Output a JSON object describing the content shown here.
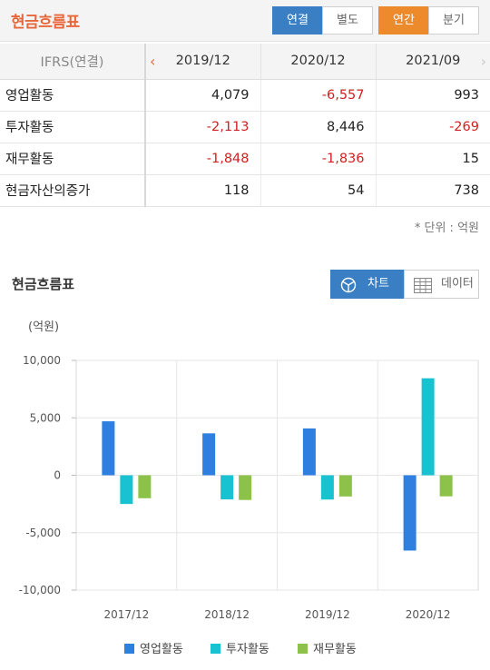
{
  "header": {
    "title": "현금흐름표",
    "scope_tabs": [
      "연결",
      "별도"
    ],
    "scope_selected": "연결",
    "period_tabs": [
      "연간",
      "분기"
    ],
    "period_selected": "연간"
  },
  "table": {
    "basis_label": "IFRS(연결)",
    "columns": [
      "2019/12",
      "2020/12",
      "2021/09"
    ],
    "rows": [
      {
        "label": "영업활동",
        "values": [
          "4,079",
          "-6,557",
          "993"
        ]
      },
      {
        "label": "투자활동",
        "values": [
          "-2,113",
          "8,446",
          "-269"
        ]
      },
      {
        "label": "재무활동",
        "values": [
          "-1,848",
          "-1,836",
          "15"
        ]
      },
      {
        "label": "현금자산의증가",
        "values": [
          "118",
          "54",
          "738"
        ]
      }
    ],
    "unit_note": "* 단위 : 억원"
  },
  "chart_section": {
    "title": "현금흐름표",
    "view_tabs": [
      "차트",
      "데이터"
    ],
    "view_selected": "차트"
  },
  "colors": {
    "operating": "#2e7fe0",
    "investing": "#18c2d0",
    "financing": "#8cc24a",
    "negative": "#d21f1f",
    "accent": "#e8673a"
  },
  "chart_data": {
    "type": "bar",
    "ylabel": "(억원)",
    "categories": [
      "2017/12",
      "2018/12",
      "2019/12",
      "2020/12"
    ],
    "ylim": [
      -10000,
      10000
    ],
    "yticks": [
      10000,
      5000,
      0,
      -5000,
      -10000
    ],
    "ytick_labels": [
      "10,000",
      "5,000",
      "0",
      "-5,000",
      "-10,000"
    ],
    "grid": true,
    "legend_position": "bottom",
    "series": [
      {
        "name": "영업활동",
        "color": "#2e7fe0",
        "values": [
          4700,
          3650,
          4079,
          -6557
        ]
      },
      {
        "name": "투자활동",
        "color": "#18c2d0",
        "values": [
          -2500,
          -2100,
          -2113,
          8446
        ]
      },
      {
        "name": "재무활동",
        "color": "#8cc24a",
        "values": [
          -2000,
          -2150,
          -1848,
          -1836
        ]
      }
    ]
  }
}
